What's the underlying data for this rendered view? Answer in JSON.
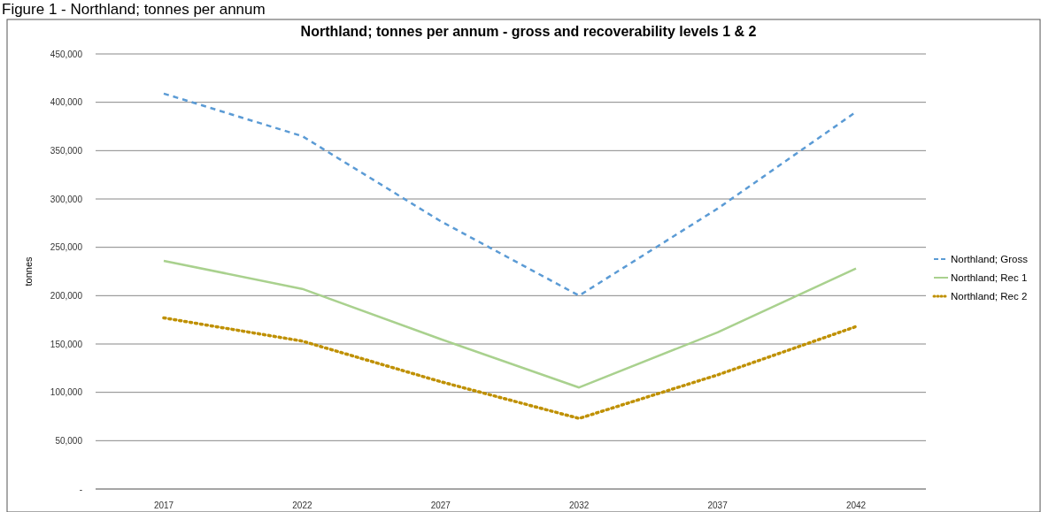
{
  "chart_data": {
    "type": "line",
    "title": "Northland; tonnes per annum - gross and recoverability levels 1 & 2",
    "ylabel": "tonnes",
    "annotations": [
      "Figure 1 - Northland; tonnes per annum"
    ],
    "categories": [
      "2017",
      "2022",
      "2027",
      "2032",
      "2037",
      "2042"
    ],
    "series": [
      {
        "name": "Northland; Gross",
        "color": "#5b9bd5",
        "line_style": "dashed",
        "values": [
          409000,
          365000,
          277000,
          200000,
          290000,
          390000
        ]
      },
      {
        "name": "Northland; Rec 1",
        "color": "#a9d18e",
        "line_style": "solid",
        "values": [
          236000,
          207000,
          155000,
          105000,
          162000,
          228000
        ]
      },
      {
        "name": "Northland; Rec 2",
        "color": "#bf9000",
        "line_style": "dotted",
        "values": [
          177000,
          153000,
          111000,
          73000,
          118000,
          168000
        ]
      }
    ],
    "ylim": [
      0,
      450000
    ],
    "yticks": [
      {
        "value": 0,
        "label": "-"
      },
      {
        "value": 50000,
        "label": "50,000"
      },
      {
        "value": 100000,
        "label": "100,000"
      },
      {
        "value": 150000,
        "label": "150,000"
      },
      {
        "value": 200000,
        "label": "200,000"
      },
      {
        "value": 250000,
        "label": "250,000"
      },
      {
        "value": 300000,
        "label": "300,000"
      },
      {
        "value": 350000,
        "label": "350,000"
      },
      {
        "value": 400000,
        "label": "400,000"
      },
      {
        "value": 450000,
        "label": "450,000"
      }
    ],
    "grid": "y",
    "legend": "right"
  }
}
